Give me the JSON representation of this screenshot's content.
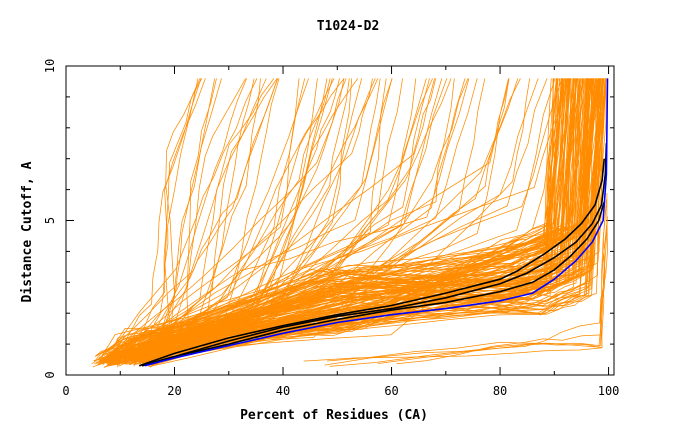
{
  "chart_data": {
    "type": "line",
    "title": "T1024-D2",
    "xlabel": "Percent of Residues (CA)",
    "ylabel": "Distance Cutoff, A",
    "xlim": [
      0,
      101
    ],
    "ylim": [
      0,
      10
    ],
    "x_ticks": [
      "0",
      "20",
      "40",
      "60",
      "80",
      "100"
    ],
    "y_ticks": [
      "0",
      "5",
      "10"
    ],
    "grid": false,
    "colors": {
      "ensemble": "#ff8c00",
      "reference": "#000000",
      "highlight": "#0000ff"
    },
    "highlight_series": {
      "name": "",
      "color": "#0000ff",
      "points": [
        [
          14.5,
          0.3
        ],
        [
          20,
          0.55
        ],
        [
          30,
          0.95
        ],
        [
          40,
          1.35
        ],
        [
          50,
          1.7
        ],
        [
          60,
          1.95
        ],
        [
          70,
          2.15
        ],
        [
          80,
          2.4
        ],
        [
          86,
          2.65
        ],
        [
          90,
          3.1
        ],
        [
          94,
          3.7
        ],
        [
          97,
          4.3
        ],
        [
          99,
          5.0
        ],
        [
          99.6,
          6.5
        ],
        [
          99.8,
          9.6
        ]
      ]
    },
    "reference_series": [
      {
        "name": "",
        "color": "#000000",
        "points": [
          [
            14,
            0.3
          ],
          [
            20,
            0.6
          ],
          [
            30,
            1.1
          ],
          [
            40,
            1.55
          ],
          [
            50,
            1.9
          ],
          [
            60,
            2.15
          ],
          [
            70,
            2.5
          ],
          [
            80,
            2.95
          ],
          [
            85,
            3.3
          ],
          [
            90,
            3.8
          ],
          [
            94,
            4.3
          ],
          [
            97,
            4.9
          ],
          [
            98.7,
            5.5
          ],
          [
            99.4,
            6.5
          ],
          [
            99.6,
            7.5
          ]
        ]
      },
      {
        "name": "",
        "color": "#000000",
        "points": [
          [
            13.5,
            0.3
          ],
          [
            20,
            0.7
          ],
          [
            30,
            1.2
          ],
          [
            40,
            1.6
          ],
          [
            50,
            1.95
          ],
          [
            60,
            2.25
          ],
          [
            70,
            2.65
          ],
          [
            80,
            3.1
          ],
          [
            83,
            3.35
          ],
          [
            88,
            3.9
          ],
          [
            92,
            4.4
          ],
          [
            95,
            4.9
          ],
          [
            97.5,
            5.5
          ],
          [
            98.8,
            6.3
          ],
          [
            99.2,
            7.0
          ]
        ]
      },
      {
        "name": "",
        "color": "#000000",
        "points": [
          [
            14,
            0.3
          ],
          [
            20,
            0.6
          ],
          [
            30,
            1.0
          ],
          [
            40,
            1.45
          ],
          [
            50,
            1.8
          ],
          [
            60,
            2.1
          ],
          [
            70,
            2.35
          ],
          [
            80,
            2.7
          ],
          [
            86,
            3.0
          ],
          [
            90,
            3.4
          ],
          [
            93,
            3.85
          ],
          [
            96,
            4.4
          ],
          [
            98.2,
            5.0
          ],
          [
            99.2,
            5.6
          ]
        ]
      }
    ]
  }
}
